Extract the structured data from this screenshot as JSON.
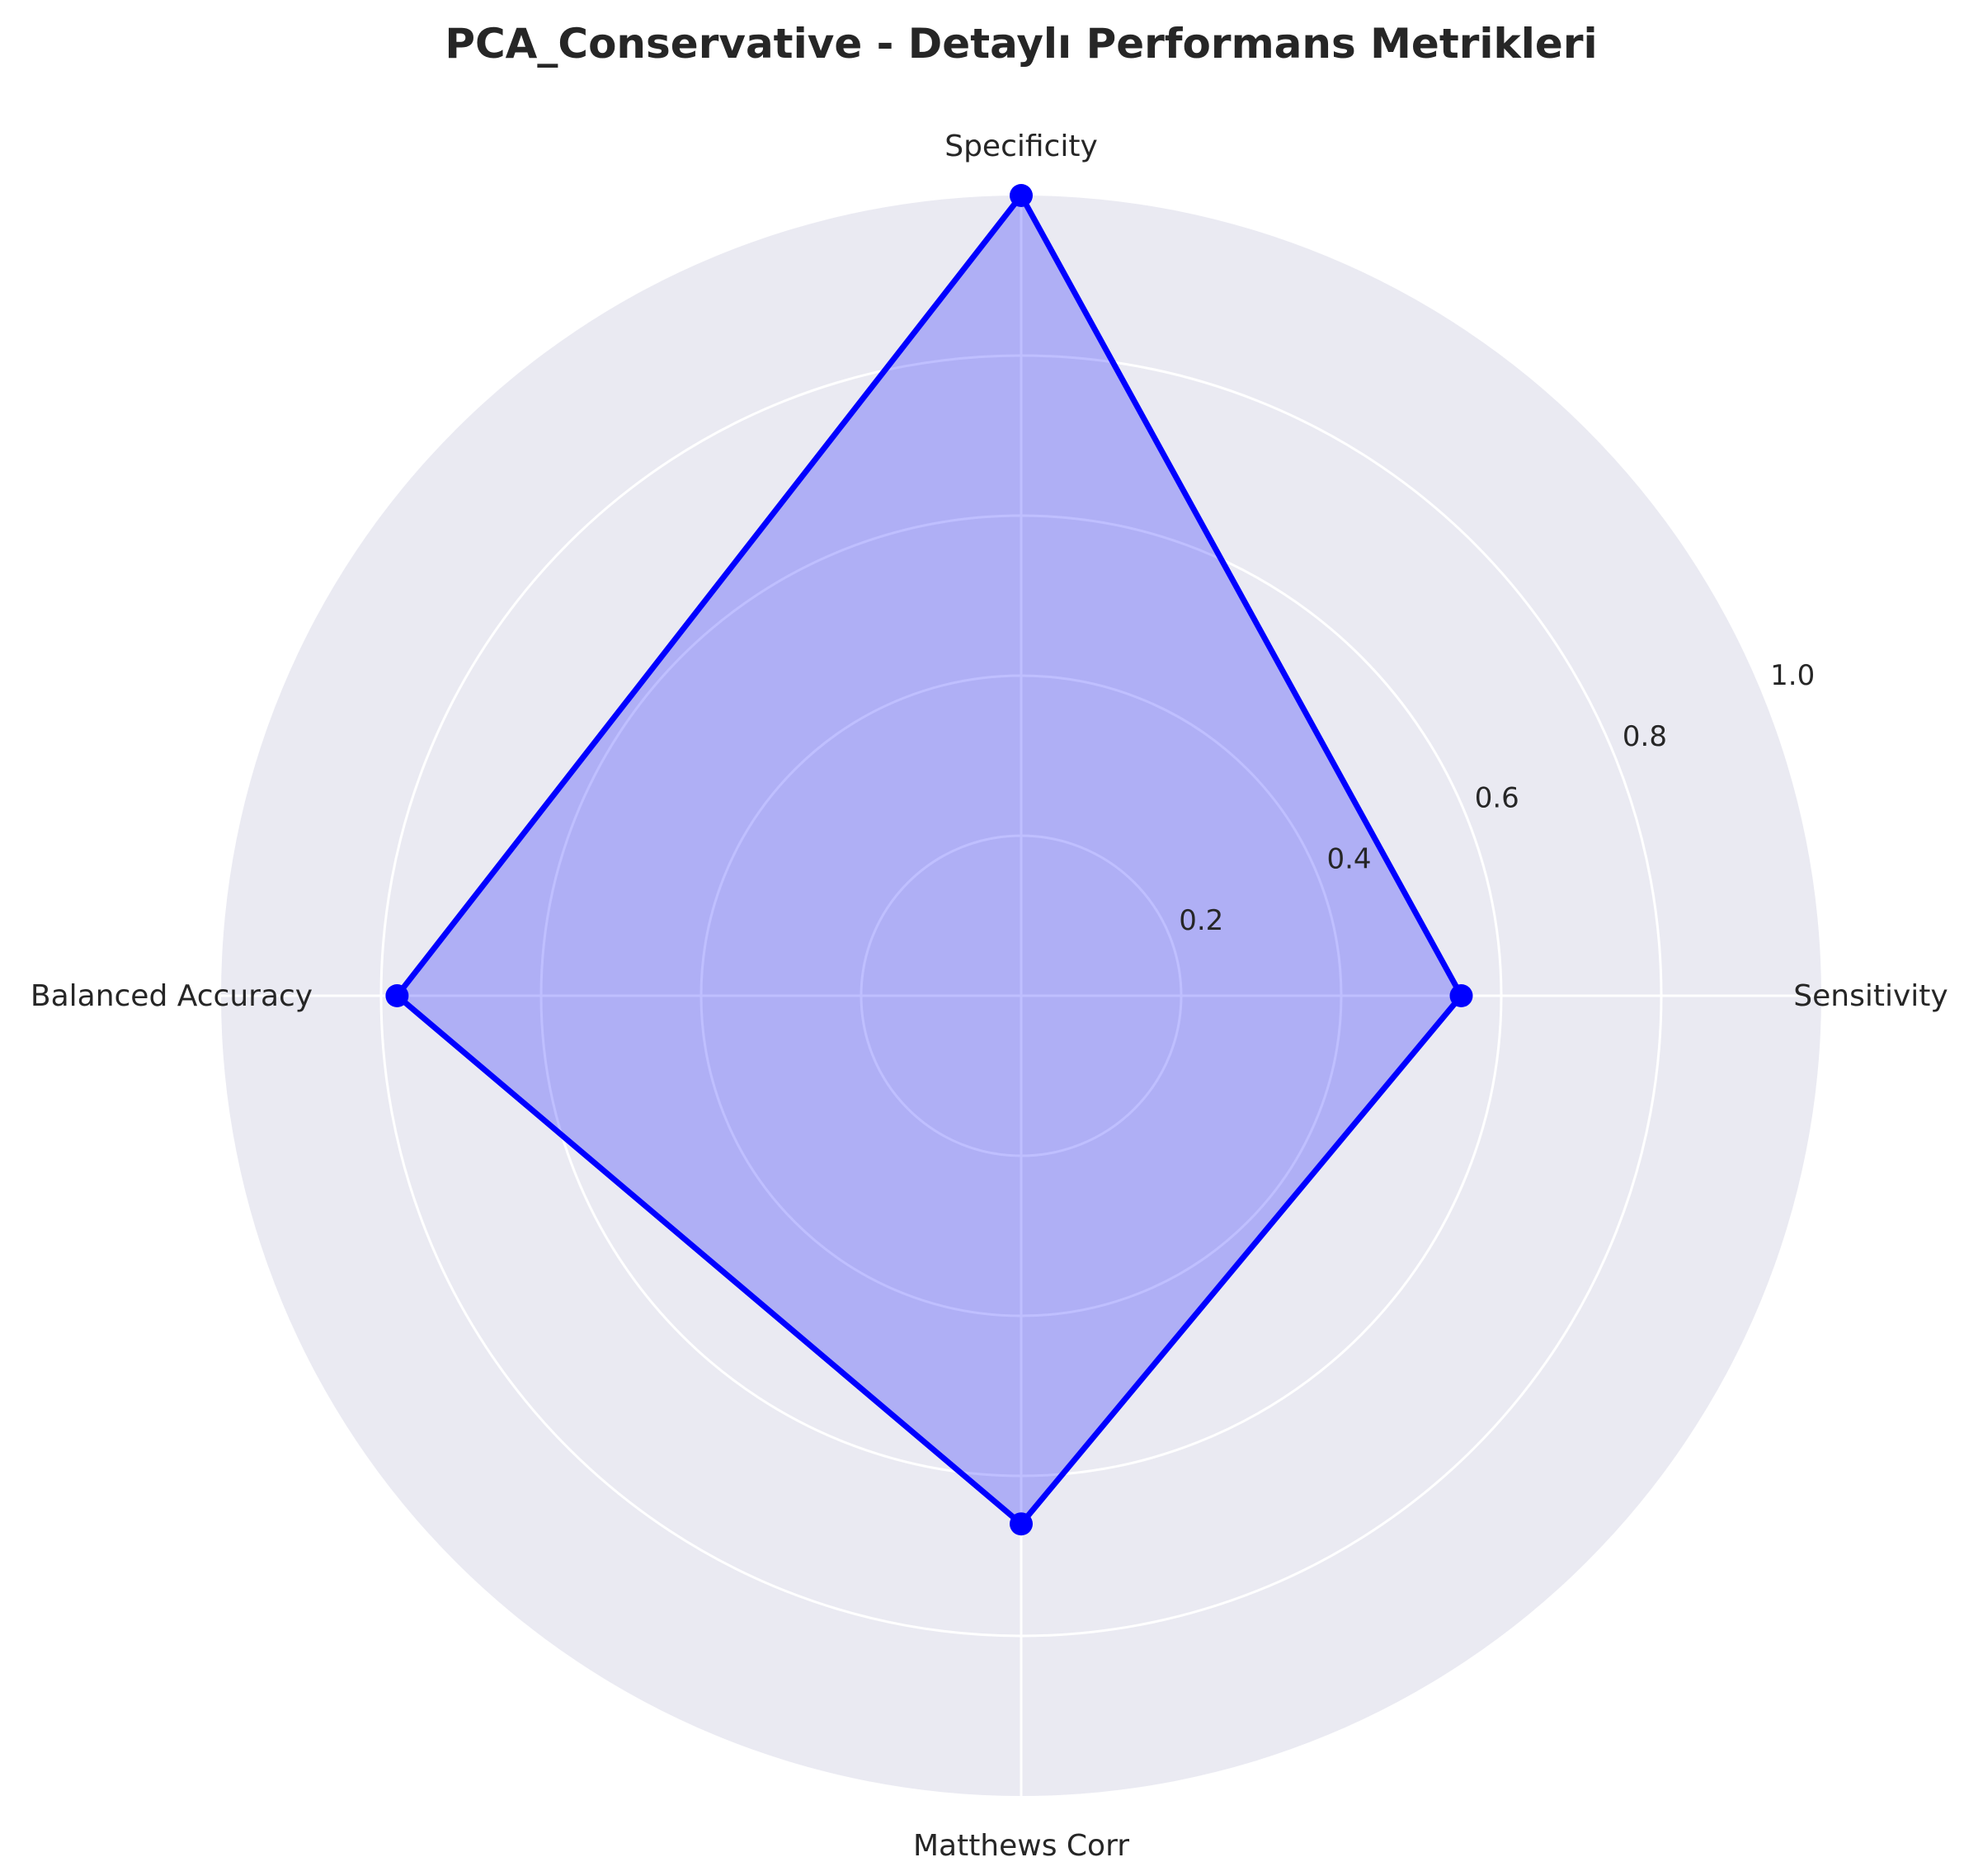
{
  "chart_data": {
    "type": "radar",
    "title": "PCA_Conservative - Detaylı Performans Metrikleri",
    "categories": [
      "Sensitivity",
      "Specificity",
      "Balanced Accuracy",
      "Matthews Corr"
    ],
    "series": [
      {
        "values": [
          0.55,
          1.0,
          0.78,
          0.66
        ]
      }
    ],
    "radial_ticks": [
      0.2,
      0.4,
      0.6,
      0.8,
      1.0
    ],
    "radial_tick_labels": [
      "0.2",
      "0.4",
      "0.6",
      "0.8",
      "1.0"
    ],
    "rlim": [
      0,
      1.0
    ],
    "grid": true,
    "legend": "none",
    "colors": {
      "line": "#0000ff",
      "fill": "#0000ff",
      "background": "#eaeaf2",
      "grid": "#ffffff"
    }
  }
}
